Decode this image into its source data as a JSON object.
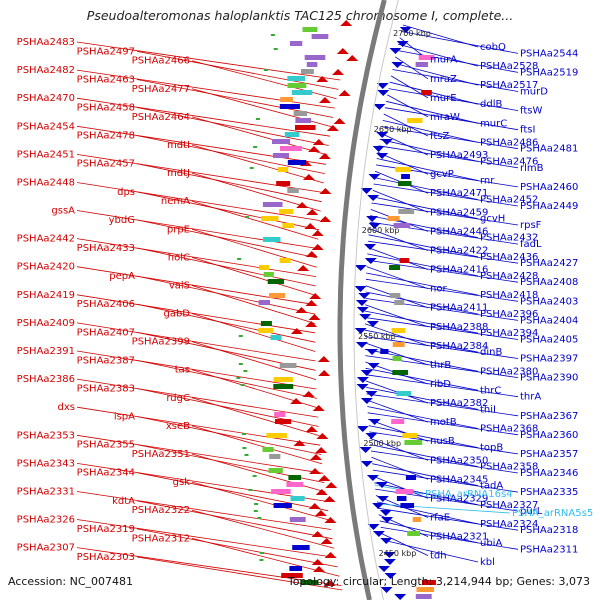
{
  "title": "Pseudoalteromonas haloplanktis TAC125 chromosome I, complete...",
  "footer": {
    "accession": "Accession: NC_007481",
    "summary": "Topology: circular; Length: 3,214,944 bp; Genes: 3,073"
  },
  "colors": {
    "forward": "#d40000",
    "reverse": "#0000cc",
    "rna": "#33bbee",
    "backbone": "#888888"
  },
  "kbp_markers": [
    "2700 kbp",
    "2650 kbp",
    "2600 kbp",
    "2550 kbp",
    "2500 kbp",
    "2450 kbp"
  ],
  "forward_genes": [
    "PSHAa2483",
    "PSHAa2497",
    "PSHAa2466",
    "PSHAa2482",
    "PSHAa2463",
    "PSHAa2477",
    "PSHAa2470",
    "PSHAa2458",
    "PSHAa2464",
    "PSHAa2454",
    "PSHAa2478",
    "mdtI",
    "PSHAa2451",
    "PSHAa2457",
    "mdtJ",
    "PSHAa2448",
    "dps",
    "nemA",
    "gssA",
    "ybdG",
    "prpE",
    "PSHAa2442",
    "PSHAa2433",
    "holC",
    "PSHAa2420",
    "pepA",
    "valS",
    "PSHAa2419",
    "PSHAa2406",
    "gabD",
    "PSHAa2409",
    "PSHAa2407",
    "PSHAa2399",
    "PSHAa2391",
    "PSHAa2387",
    "tas",
    "PSHAa2386",
    "PSHAa2383",
    "rdgC",
    "dxs",
    "ispA",
    "xseB",
    "PSHAa2353",
    "PSHAa2355",
    "PSHAa2351",
    "PSHAa2343",
    "PSHAa2344",
    "gsk",
    "PSHAa2331",
    "kdtA",
    "PSHAa2322",
    "PSHAa2326",
    "PSHAa2319",
    "PSHAa2312",
    "PSHAa2307",
    "PSHAa2303"
  ],
  "reverse_genes": [
    "cobQ",
    "PSHAa2544",
    "murA",
    "PSHAa2528",
    "PSHAa2519",
    "mraZ",
    "PSHAa2517",
    "murD",
    "murE",
    "ddlB",
    "ftsW",
    "mraW",
    "murC",
    "ftsI",
    "ftsZ",
    "PSHAa2486",
    "PSHAa2481",
    "PSHAa2493",
    "PSHAa2476",
    "rlmB",
    "gcvP",
    "rnr",
    "PSHAa2460",
    "PSHAa2471",
    "PSHAa2452",
    "PSHAa2449",
    "PSHAa2459",
    "gcvH",
    "rpsF",
    "PSHAa2446",
    "PSHAa2432",
    "fadL",
    "PSHAa2422",
    "PSHAa2436",
    "PSHAa2427",
    "PSHAa2416",
    "PSHAa2428",
    "PSHAa2408",
    "nor",
    "PSHAa2418",
    "PSHAa2403",
    "PSHAa2411",
    "PSHAa2396",
    "PSHAa2404",
    "PSHAa2388",
    "PSHAa2394",
    "PSHAa2405",
    "PSHAa2384",
    "dinB",
    "PSHAa2397",
    "thrB",
    "PSHAa2380",
    "PSHAa2390",
    "ribD",
    "thrC",
    "thrA",
    "PSHAa2382",
    "thiI",
    "PSHAa2367",
    "motB",
    "PSHAa2368",
    "PSHAa2360",
    "nusB",
    "topB",
    "PSHAa2357",
    "PSHAa2350",
    "PSHAa2358",
    "PSHAa2346",
    "PSHAa2345",
    "tadA",
    "PSHAa2335",
    "PSHAa2329",
    "PSHAa2327",
    "purL",
    "rfaE",
    "PSHAa2324",
    "PSHAa2318",
    "PSHAa2321",
    "ubiA",
    "PSHAa2311",
    "tdh",
    "kbl"
  ],
  "rna_genes": [
    "PSHA_arRNA16s4",
    "PSHA_arRNA5s5"
  ]
}
